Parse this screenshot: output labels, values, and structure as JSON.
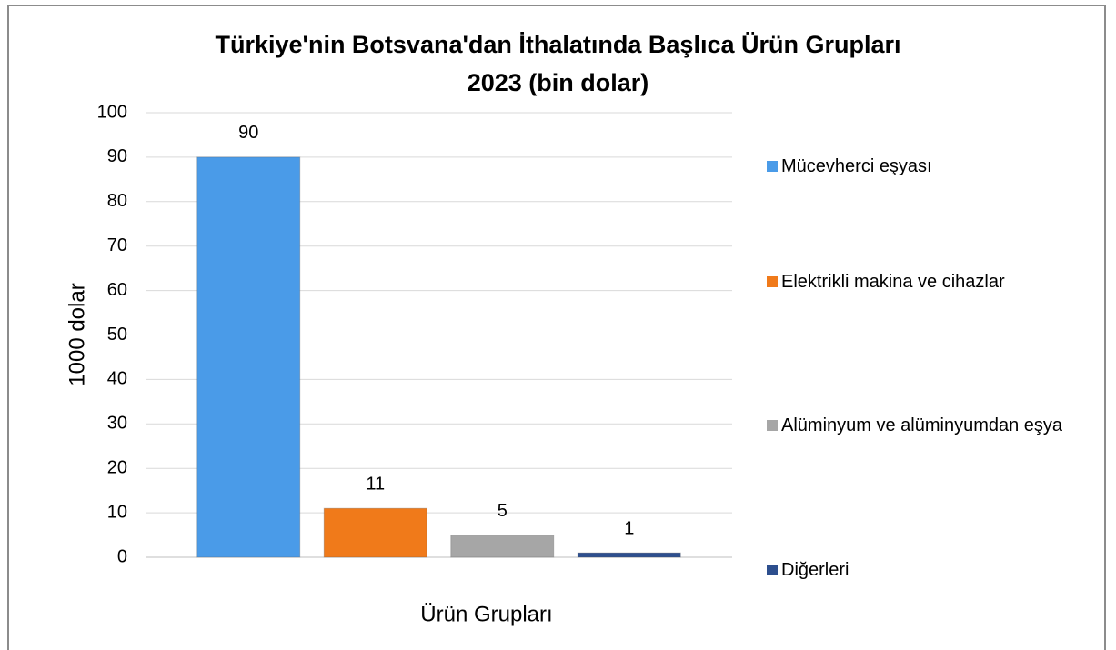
{
  "chart_data": {
    "type": "bar",
    "title": "Türkiye'nin Botsvana'dan İthalatında Başlıca Ürün Grupları\n2023 (bin dolar)",
    "y_label": "1000 dolar",
    "x_label": "Ürün Grupları",
    "categories": [
      null
    ],
    "series": [
      {
        "name": "Mücevherci eşyası",
        "color": "#4a9be8",
        "values": [
          90
        ]
      },
      {
        "name": "Elektrikli makina ve cihazlar",
        "color": "#f07a1a",
        "values": [
          11
        ]
      },
      {
        "name": "Alüminyum ve alüminyumdan eşya",
        "color": "#a6a6a6",
        "values": [
          5
        ]
      },
      {
        "name": "Diğerleri",
        "color": "#2d4f8e",
        "values": [
          1
        ]
      }
    ],
    "ylim": [
      0,
      100
    ],
    "yticks": [
      0,
      10,
      20,
      30,
      40,
      50,
      60,
      70,
      80,
      90,
      100
    ],
    "grid": true,
    "legend": "right"
  }
}
